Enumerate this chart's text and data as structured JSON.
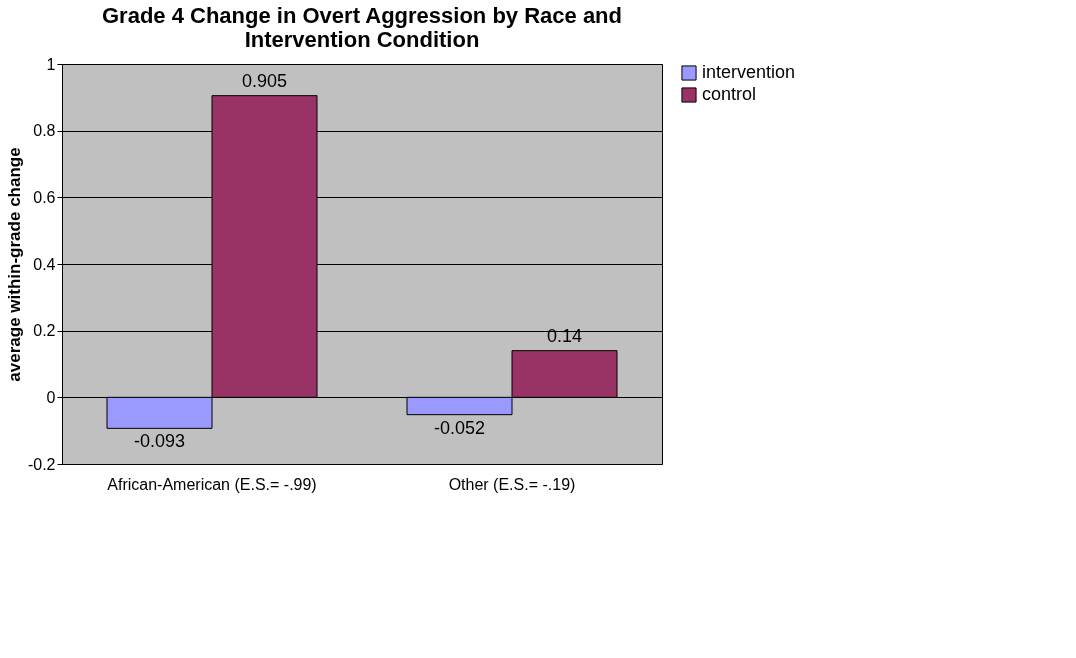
{
  "chart_data": {
    "type": "bar",
    "title": "Grade 4 Change in Overt Aggression by Race and Intervention Condition",
    "ylabel": "average within-grade change",
    "categories": [
      "African-American (E.S.= -.99)",
      "Other (E.S.= -.19)"
    ],
    "series": [
      {
        "name": "intervention",
        "color": "#9999ff",
        "values": [
          -0.093,
          -0.052
        ]
      },
      {
        "name": "control",
        "color": "#993366",
        "values": [
          0.905,
          0.14
        ]
      }
    ],
    "ylim": [
      -0.2,
      1
    ],
    "yticks": [
      -0.2,
      0,
      0.2,
      0.4,
      0.6,
      0.8,
      1
    ],
    "grid": "y",
    "legend": "right",
    "data_labels": true
  }
}
